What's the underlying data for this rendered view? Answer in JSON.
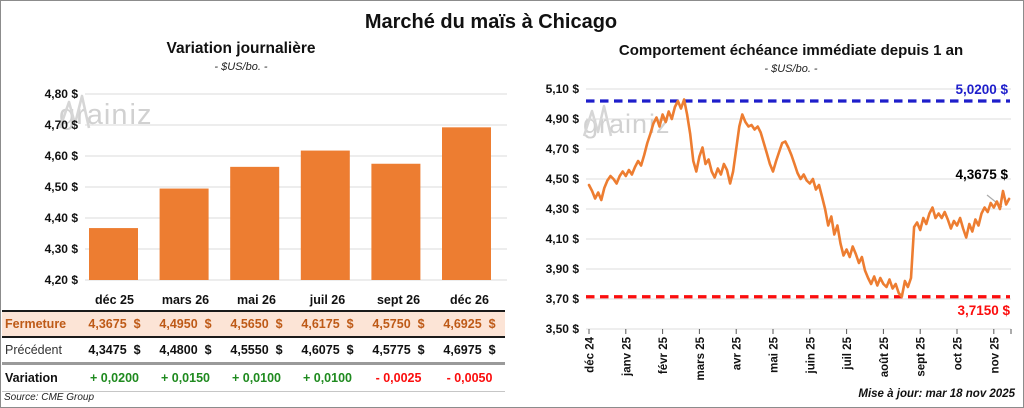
{
  "page": {
    "title": "Marché du maïs à Chicago",
    "watermark_parts": [
      "grain",
      "iz"
    ],
    "source": "Source: CME Group",
    "updated": "Mise à jour: mar 18 nov 2025"
  },
  "chart_data": [
    {
      "type": "bar",
      "title": "Variation journalière",
      "subtitle": "- $US/bo. -",
      "categories": [
        "déc 25",
        "mars 26",
        "mai 26",
        "juil 26",
        "sept 26",
        "déc 26"
      ],
      "values": [
        4.3675,
        4.495,
        4.565,
        4.6175,
        4.575,
        4.6925
      ],
      "ylim": [
        4.2,
        4.8
      ],
      "grid": true,
      "bar_color": "#ED7D31",
      "y_ticks": [
        {
          "v": 4.2,
          "label": "4,20 $"
        },
        {
          "v": 4.3,
          "label": "4,30 $"
        },
        {
          "v": 4.4,
          "label": "4,40 $"
        },
        {
          "v": 4.5,
          "label": "4,50 $"
        },
        {
          "v": 4.6,
          "label": "4,60 $"
        },
        {
          "v": 4.7,
          "label": "4,70 $"
        },
        {
          "v": 4.8,
          "label": "4,80 $"
        }
      ]
    },
    {
      "type": "line",
      "title": "Comportement échéance immédiate depuis 1 an",
      "subtitle": "- $US/bo. -",
      "x_tick_labels": [
        "déc 24",
        "janv 25",
        "févr 25",
        "mars 25",
        "avr 25",
        "mai 25",
        "juin 25",
        "juil 25",
        "août 25",
        "sept 25",
        "oct 25",
        "nov 25"
      ],
      "points_per_month": 12,
      "ylim": [
        3.5,
        5.1
      ],
      "grid": true,
      "line_color": "#ED7D31",
      "y_ticks": [
        {
          "v": 3.5,
          "label": "3,50 $"
        },
        {
          "v": 3.7,
          "label": "3,70 $"
        },
        {
          "v": 3.9,
          "label": "3,90 $"
        },
        {
          "v": 4.1,
          "label": "4,10 $"
        },
        {
          "v": 4.3,
          "label": "4,30 $"
        },
        {
          "v": 4.5,
          "label": "4,50 $"
        },
        {
          "v": 4.7,
          "label": "4,70 $"
        },
        {
          "v": 4.9,
          "label": "4,90 $"
        },
        {
          "v": 5.1,
          "label": "5,10 $"
        }
      ],
      "annotations": {
        "high": {
          "value": 5.02,
          "label": "5,0200 $",
          "color": "#1E1ECB",
          "style": "dashed"
        },
        "low": {
          "value": 3.715,
          "label": "3,7150 $",
          "color": "#FB0D0D",
          "style": "dashed"
        },
        "last": {
          "value": 4.3675,
          "label": "4,3675 $"
        }
      },
      "values": [
        4.46,
        4.42,
        4.37,
        4.41,
        4.36,
        4.44,
        4.49,
        4.52,
        4.5,
        4.47,
        4.52,
        4.55,
        4.52,
        4.56,
        4.53,
        4.58,
        4.62,
        4.59,
        4.66,
        4.74,
        4.8,
        4.87,
        4.91,
        4.85,
        4.93,
        4.88,
        4.95,
        4.9,
        4.98,
        5.02,
        4.97,
        5.03,
        4.93,
        4.8,
        4.62,
        4.55,
        4.65,
        4.71,
        4.6,
        4.63,
        4.55,
        4.51,
        4.57,
        4.53,
        4.6,
        4.56,
        4.47,
        4.55,
        4.7,
        4.85,
        4.93,
        4.88,
        4.85,
        4.86,
        4.83,
        4.85,
        4.81,
        4.74,
        4.67,
        4.6,
        4.55,
        4.62,
        4.68,
        4.74,
        4.75,
        4.71,
        4.66,
        4.6,
        4.54,
        4.5,
        4.53,
        4.49,
        4.47,
        4.5,
        4.43,
        4.46,
        4.38,
        4.3,
        4.19,
        4.25,
        4.13,
        4.19,
        4.07,
        3.99,
        4.03,
        3.98,
        4.05,
        4.0,
        3.94,
        3.98,
        3.89,
        3.84,
        3.8,
        3.85,
        3.79,
        3.84,
        3.8,
        3.78,
        3.83,
        3.77,
        3.8,
        3.74,
        3.715,
        3.82,
        3.78,
        3.84,
        4.18,
        4.21,
        4.16,
        4.24,
        4.2,
        4.27,
        4.31,
        4.24,
        4.27,
        4.24,
        4.28,
        4.23,
        4.17,
        4.22,
        4.19,
        4.24,
        4.17,
        4.11,
        4.2,
        4.15,
        4.23,
        4.19,
        4.27,
        4.31,
        4.28,
        4.34,
        4.31,
        4.35,
        4.3,
        4.42,
        4.33,
        4.3675
      ]
    }
  ],
  "table": {
    "months": [
      "déc 25",
      "mars 26",
      "mai 26",
      "juil 26",
      "sept 26",
      "déc 26"
    ],
    "rows": [
      {
        "label": "Fermeture",
        "values": [
          "4,3675  $",
          "4,4950  $",
          "4,5650  $",
          "4,6175  $",
          "4,5750  $",
          "4,6925  $"
        ]
      },
      {
        "label": "Précédent",
        "values": [
          "4,3475  $",
          "4,4800  $",
          "4,5550  $",
          "4,6075  $",
          "4,5775  $",
          "4,6975  $"
        ]
      },
      {
        "label": "Variation",
        "values": [
          "+ 0,0200",
          "+ 0,0150",
          "+ 0,0100",
          "+ 0,0100",
          "- 0,0025",
          "- 0,0050"
        ]
      }
    ],
    "colors": {
      "positive": "#1F8A1F",
      "negative": "#FB0D0D",
      "fermeture_text": "#BE5A17",
      "fermeture_bg": "#FCE4D6"
    }
  }
}
